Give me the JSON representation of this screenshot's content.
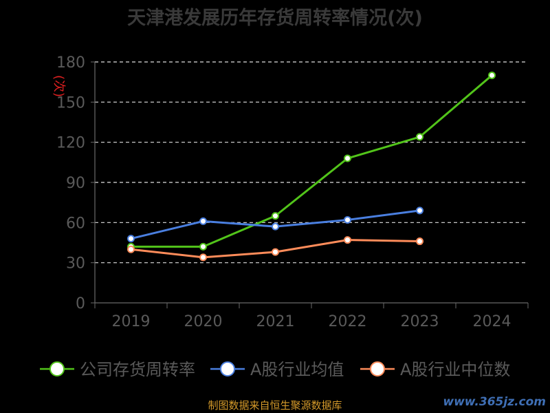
{
  "chart_data": {
    "type": "line",
    "title": "天津港发展历年存货周转率情况(次)",
    "ylabel": "(次)",
    "categories": [
      "2019",
      "2020",
      "2021",
      "2022",
      "2023",
      "2024"
    ],
    "ylim": [
      0,
      180
    ],
    "yticks": [
      0,
      30,
      60,
      90,
      120,
      150,
      180
    ],
    "grid": true,
    "legend_position": "bottom",
    "series": [
      {
        "name": "公司存货周转率",
        "color": "#52c41a",
        "values": [
          42,
          42,
          65,
          108,
          124,
          170
        ]
      },
      {
        "name": "A股行业均值",
        "color": "#4a7fe0",
        "values": [
          48,
          61,
          57,
          62,
          69,
          null
        ]
      },
      {
        "name": "A股行业中位数",
        "color": "#ff8c5a",
        "values": [
          40,
          34,
          38,
          47,
          46,
          null
        ]
      }
    ]
  },
  "footer": {
    "source": "制图数据来自恒生聚源数据库",
    "watermark": "www.365jz.com"
  }
}
